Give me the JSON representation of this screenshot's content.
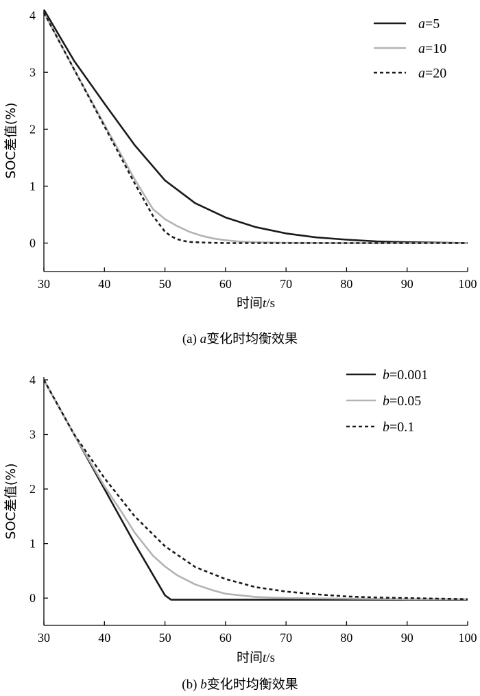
{
  "chart_data": [
    {
      "type": "line",
      "id": "a",
      "xlabel_prefix": "时间",
      "xlabel_var": "t",
      "xlabel_unit": "/s",
      "ylabel": "SOC差值(%)",
      "xlim": [
        30,
        100
      ],
      "ylim": [
        -0.5,
        4.1
      ],
      "xticks": [
        30,
        40,
        50,
        60,
        70,
        80,
        90,
        100
      ],
      "yticks": [
        0,
        1,
        2,
        3,
        4
      ],
      "caption_prefix": "(a) ",
      "caption_var": "a",
      "caption_suffix": "变化时均衡效果",
      "legend_position": "top-right",
      "series": [
        {
          "name_var": "a",
          "name_value": "=5",
          "color": "#1a1a1a",
          "dash": "",
          "x": [
            30,
            35,
            40,
            45,
            50,
            55,
            60,
            65,
            70,
            75,
            80,
            85,
            90,
            95,
            100
          ],
          "y": [
            4.1,
            3.2,
            2.45,
            1.72,
            1.1,
            0.7,
            0.45,
            0.28,
            0.17,
            0.1,
            0.06,
            0.03,
            0.015,
            0.008,
            0.0
          ]
        },
        {
          "name_var": "a",
          "name_value": "=10",
          "color": "#b3b3b3",
          "dash": "",
          "x": [
            30,
            35,
            40,
            45,
            48,
            50,
            52,
            54,
            56,
            58,
            60,
            62,
            65,
            70,
            80,
            90,
            100
          ],
          "y": [
            4.05,
            3.05,
            2.08,
            1.12,
            0.6,
            0.42,
            0.3,
            0.2,
            0.13,
            0.08,
            0.05,
            0.03,
            0.015,
            0.005,
            0.0,
            0.0,
            0.0
          ]
        },
        {
          "name_var": "a",
          "name_value": "=20",
          "color": "#1a1a1a",
          "dash": "5,4",
          "x": [
            30,
            35,
            40,
            45,
            48,
            50,
            51,
            52,
            53,
            54,
            56,
            58,
            60,
            65,
            70,
            80,
            90,
            100
          ],
          "y": [
            4.05,
            3.05,
            2.05,
            1.05,
            0.48,
            0.2,
            0.12,
            0.07,
            0.04,
            0.02,
            0.01,
            0.005,
            0.0,
            0.0,
            0.0,
            0.0,
            0.0,
            0.0
          ]
        }
      ]
    },
    {
      "type": "line",
      "id": "b",
      "xlabel_prefix": "时间",
      "xlabel_var": "t",
      "xlabel_unit": "/s",
      "ylabel": "SOC差值(%)",
      "xlim": [
        30,
        100
      ],
      "ylim": [
        -0.5,
        4.05
      ],
      "xticks": [
        30,
        40,
        50,
        60,
        70,
        80,
        90,
        100
      ],
      "yticks": [
        0,
        1,
        2,
        3,
        4
      ],
      "caption_prefix": "(b) ",
      "caption_var": "b",
      "caption_suffix": "变化时均衡效果",
      "legend_position": "top-right",
      "series": [
        {
          "name_var": "b",
          "name_value": "=0.001",
          "color": "#1a1a1a",
          "dash": "",
          "x": [
            30,
            35,
            40,
            45,
            50,
            51,
            55,
            60,
            70,
            80,
            90,
            100
          ],
          "y": [
            4.0,
            3.0,
            2.0,
            1.0,
            0.05,
            -0.03,
            -0.03,
            -0.03,
            -0.03,
            -0.03,
            -0.03,
            -0.03
          ]
        },
        {
          "name_var": "b",
          "name_value": "=0.05",
          "color": "#b3b3b3",
          "dash": "",
          "x": [
            30,
            35,
            40,
            43,
            45,
            48,
            50,
            52,
            55,
            58,
            60,
            65,
            70,
            80,
            90,
            100
          ],
          "y": [
            4.0,
            3.0,
            2.05,
            1.55,
            1.2,
            0.78,
            0.58,
            0.42,
            0.25,
            0.14,
            0.08,
            0.02,
            0.0,
            -0.01,
            -0.02,
            -0.02
          ]
        },
        {
          "name_var": "b",
          "name_value": "=0.1",
          "color": "#1a1a1a",
          "dash": "5,4",
          "x": [
            30,
            35,
            40,
            45,
            50,
            55,
            60,
            65,
            70,
            75,
            80,
            85,
            90,
            95,
            100
          ],
          "y": [
            4.0,
            3.0,
            2.2,
            1.5,
            0.95,
            0.57,
            0.35,
            0.2,
            0.12,
            0.07,
            0.03,
            0.01,
            0.0,
            -0.01,
            -0.02
          ]
        }
      ]
    }
  ]
}
